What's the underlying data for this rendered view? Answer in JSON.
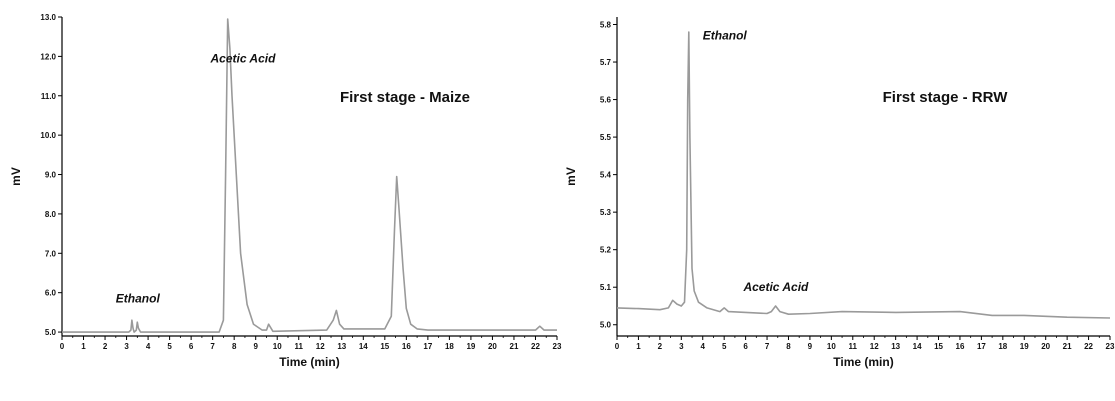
{
  "chart_data": [
    {
      "type": "line",
      "title": "First stage - Maize",
      "xlabel": "Time (min)",
      "ylabel": "mV",
      "xlim": [
        0,
        23
      ],
      "ylim": [
        4.9,
        13.0
      ],
      "xticks": [
        "0",
        "1",
        "2",
        "3",
        "4",
        "5",
        "6",
        "7",
        "8",
        "9",
        "10",
        "11",
        "12",
        "13",
        "14",
        "15",
        "16",
        "17",
        "18",
        "19",
        "20",
        "21",
        "22",
        "23"
      ],
      "yticks": [
        "5.0",
        "6.0",
        "7.0",
        "8.0",
        "9.0",
        "10.0",
        "11.0",
        "12.0",
        "13.0"
      ],
      "annotations": [
        {
          "text": "Acetic Acid",
          "x": 6.9,
          "y": 11.85
        },
        {
          "text": "Ethanol",
          "x": 2.5,
          "y": 5.75
        }
      ],
      "series": [
        {
          "color": "#9a9a9a",
          "x": [
            0,
            3.1,
            3.2,
            3.25,
            3.3,
            3.35,
            3.45,
            3.5,
            3.55,
            3.65,
            7.3,
            7.5,
            7.6,
            7.7,
            7.8,
            7.9,
            8.1,
            8.3,
            8.6,
            8.9,
            9.3,
            9.5,
            9.6,
            9.8,
            12.3,
            12.6,
            12.75,
            12.9,
            13.1,
            15.0,
            15.3,
            15.45,
            15.55,
            15.65,
            15.85,
            16.0,
            16.2,
            16.5,
            17.0,
            22.0,
            22.2,
            22.4,
            23.0
          ],
          "y": [
            5.0,
            5.0,
            5.05,
            5.3,
            5.1,
            5.0,
            5.05,
            5.25,
            5.1,
            5.0,
            5.0,
            5.3,
            9.0,
            12.95,
            12.2,
            11.0,
            9.0,
            7.0,
            5.7,
            5.2,
            5.05,
            5.05,
            5.2,
            5.02,
            5.05,
            5.3,
            5.55,
            5.2,
            5.08,
            5.08,
            5.4,
            7.6,
            8.95,
            8.2,
            6.6,
            5.6,
            5.2,
            5.08,
            5.05,
            5.05,
            5.15,
            5.05,
            5.05
          ]
        }
      ]
    },
    {
      "type": "line",
      "title": "First stage - RRW",
      "xlabel": "Time (min)",
      "ylabel": "mV",
      "xlim": [
        0,
        23
      ],
      "ylim": [
        4.97,
        5.82
      ],
      "xticks": [
        "0",
        "1",
        "2",
        "3",
        "4",
        "5",
        "6",
        "7",
        "8",
        "9",
        "10",
        "11",
        "12",
        "13",
        "14",
        "15",
        "16",
        "17",
        "18",
        "19",
        "20",
        "21",
        "22",
        "23"
      ],
      "yticks": [
        "5.0",
        "5.1",
        "5.2",
        "5.3",
        "5.4",
        "5.5",
        "5.6",
        "5.7",
        "5.8"
      ],
      "annotations": [
        {
          "text": "Ethanol",
          "x": 4.0,
          "y": 5.76
        },
        {
          "text": "Acetic Acid",
          "x": 5.9,
          "y": 5.09
        }
      ],
      "series": [
        {
          "color": "#9a9a9a",
          "x": [
            0,
            1.0,
            2.0,
            2.4,
            2.6,
            2.8,
            3.0,
            3.15,
            3.25,
            3.3,
            3.35,
            3.4,
            3.5,
            3.6,
            3.8,
            4.2,
            4.8,
            5.0,
            5.2,
            7.0,
            7.2,
            7.4,
            7.6,
            8.0,
            9.0,
            10.5,
            13.0,
            16.0,
            17.5,
            19.0,
            21.0,
            23.0
          ],
          "y": [
            5.045,
            5.043,
            5.04,
            5.045,
            5.065,
            5.055,
            5.05,
            5.06,
            5.2,
            5.6,
            5.78,
            5.5,
            5.15,
            5.09,
            5.06,
            5.045,
            5.035,
            5.045,
            5.035,
            5.03,
            5.035,
            5.05,
            5.035,
            5.028,
            5.03,
            5.035,
            5.033,
            5.035,
            5.025,
            5.025,
            5.02,
            5.018
          ]
        }
      ]
    }
  ]
}
